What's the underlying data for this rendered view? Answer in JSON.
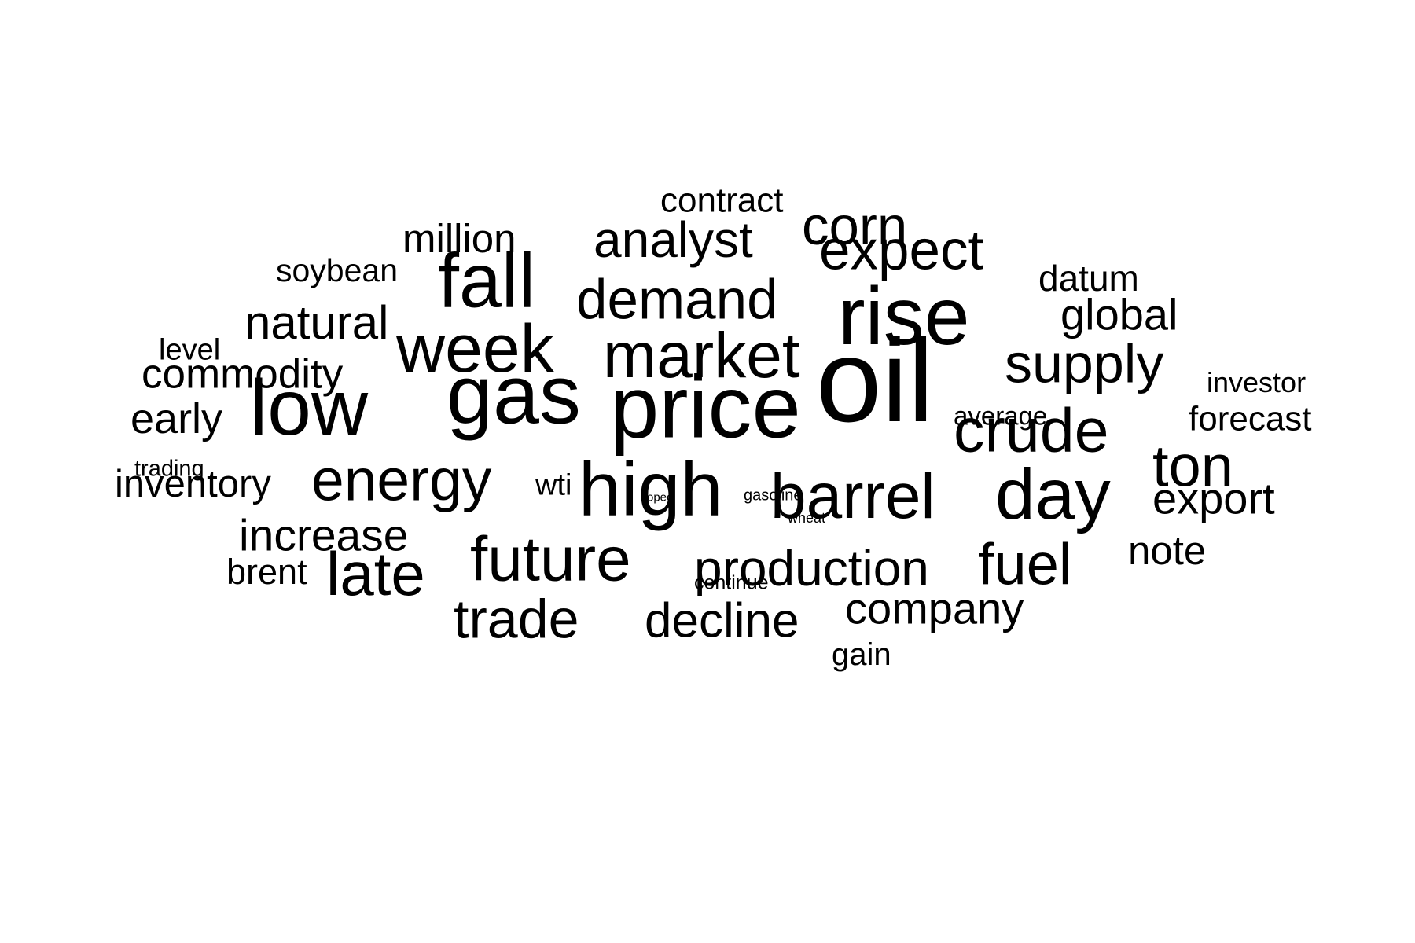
{
  "words": [
    {
      "text": "oil",
      "weight": 100
    },
    {
      "text": "price",
      "weight": 80
    },
    {
      "text": "gas",
      "weight": 76
    },
    {
      "text": "rise",
      "weight": 74
    },
    {
      "text": "low",
      "weight": 70
    },
    {
      "text": "high",
      "weight": 68
    },
    {
      "text": "day",
      "weight": 64
    },
    {
      "text": "week",
      "weight": 60
    },
    {
      "text": "fall",
      "weight": 60
    },
    {
      "text": "market",
      "weight": 58
    },
    {
      "text": "barrel",
      "weight": 58
    },
    {
      "text": "crude",
      "weight": 56
    },
    {
      "text": "future",
      "weight": 54
    },
    {
      "text": "ton",
      "weight": 52
    },
    {
      "text": "energy",
      "weight": 50
    },
    {
      "text": "late",
      "weight": 50
    },
    {
      "text": "fuel",
      "weight": 50
    },
    {
      "text": "demand",
      "weight": 48
    },
    {
      "text": "trade",
      "weight": 48
    },
    {
      "text": "expect",
      "weight": 46
    },
    {
      "text": "supply",
      "weight": 46
    },
    {
      "text": "corn",
      "weight": 46
    },
    {
      "text": "production",
      "weight": 42
    },
    {
      "text": "analyst",
      "weight": 42
    },
    {
      "text": "decline",
      "weight": 40
    },
    {
      "text": "natural",
      "weight": 40
    },
    {
      "text": "increase",
      "weight": 38
    },
    {
      "text": "export",
      "weight": 38
    },
    {
      "text": "company",
      "weight": 36
    },
    {
      "text": "global",
      "weight": 36
    },
    {
      "text": "note",
      "weight": 34
    },
    {
      "text": "early",
      "weight": 34
    },
    {
      "text": "commodity",
      "weight": 32
    },
    {
      "text": "million",
      "weight": 32
    },
    {
      "text": "inventory",
      "weight": 30
    },
    {
      "text": "datum",
      "weight": 30
    },
    {
      "text": "soybean",
      "weight": 28
    },
    {
      "text": "brent",
      "weight": 28
    },
    {
      "text": "forecast",
      "weight": 28
    },
    {
      "text": "contract",
      "weight": 26
    },
    {
      "text": "gain",
      "weight": 26
    },
    {
      "text": "level",
      "weight": 24
    },
    {
      "text": "wti",
      "weight": 24
    },
    {
      "text": "investor",
      "weight": 24
    },
    {
      "text": "average",
      "weight": 22
    },
    {
      "text": "trading",
      "weight": 18
    },
    {
      "text": "continue",
      "weight": 18
    },
    {
      "text": "gasoline",
      "weight": 15
    },
    {
      "text": "wheat",
      "weight": 14
    },
    {
      "text": "opec",
      "weight": 10
    }
  ]
}
